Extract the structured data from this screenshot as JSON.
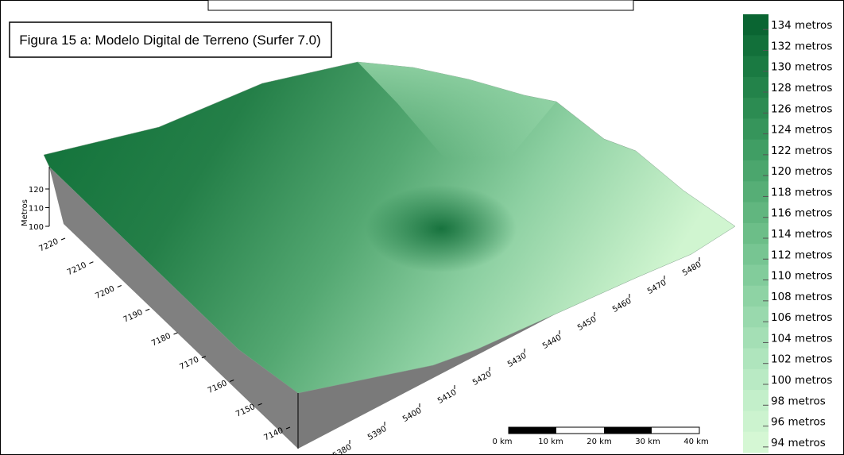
{
  "title": "Figura 15 a: Modelo Digital de Terreno (Surfer 7.0)",
  "vertical_axis": {
    "label": "Metros",
    "ticks": [
      100,
      110,
      120
    ]
  },
  "north_axis": {
    "ticks": [
      7220,
      7210,
      7200,
      7190,
      7180,
      7170,
      7160,
      7150,
      7140
    ]
  },
  "east_axis": {
    "ticks": [
      5380,
      5390,
      5400,
      5410,
      5420,
      5430,
      5440,
      5450,
      5460,
      5470,
      5480
    ]
  },
  "scale_bar": {
    "labels": [
      "0 km",
      "10 km",
      "20 km",
      "30 km",
      "40 km"
    ]
  },
  "legend": {
    "items": [
      {
        "label": "134 metros",
        "color": "#0a6532"
      },
      {
        "label": "132 metros",
        "color": "#12703a"
      },
      {
        "label": "130 metros",
        "color": "#1a7a42"
      },
      {
        "label": "128 metros",
        "color": "#23834a"
      },
      {
        "label": "126 metros",
        "color": "#2c8c52"
      },
      {
        "label": "124 metros",
        "color": "#36955b"
      },
      {
        "label": "122 metros",
        "color": "#409e64"
      },
      {
        "label": "120 metros",
        "color": "#4ba66d"
      },
      {
        "label": "118 metros",
        "color": "#56ae76"
      },
      {
        "label": "116 metros",
        "color": "#61b67f"
      },
      {
        "label": "114 metros",
        "color": "#6cbe88"
      },
      {
        "label": "112 metros",
        "color": "#77c592"
      },
      {
        "label": "110 metros",
        "color": "#82cc9b"
      },
      {
        "label": "108 metros",
        "color": "#8ed3a4"
      },
      {
        "label": "106 metros",
        "color": "#99d9ad"
      },
      {
        "label": "104 metros",
        "color": "#a4dfb5"
      },
      {
        "label": "102 metros",
        "color": "#afe5bd"
      },
      {
        "label": "100 metros",
        "color": "#b9eac4"
      },
      {
        "label": "98 metros",
        "color": "#c3efca"
      },
      {
        "label": "96 metros",
        "color": "#ccf3cf"
      },
      {
        "label": "94 metros",
        "color": "#d5f7d4"
      }
    ]
  }
}
